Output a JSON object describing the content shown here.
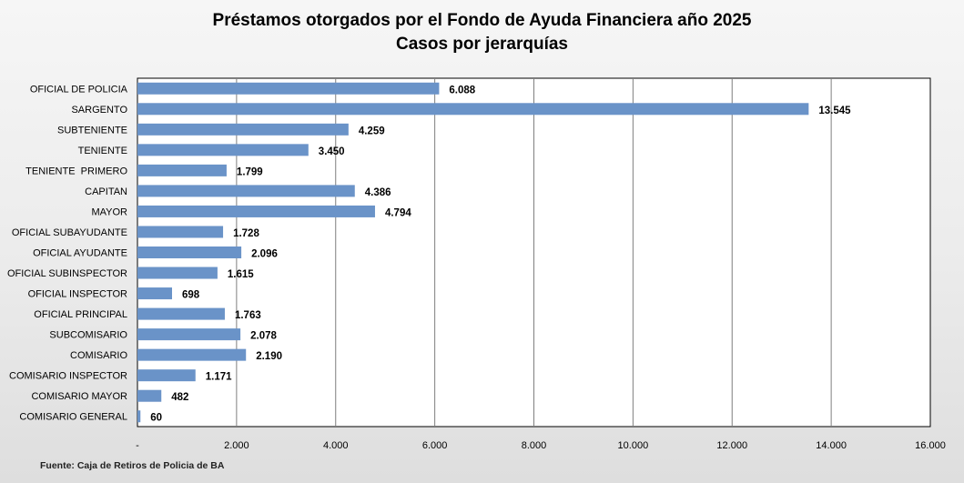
{
  "chart_data": {
    "type": "bar",
    "orientation": "horizontal",
    "title": "Préstamos otorgados por el Fondo de Ayuda Financiera año 2025",
    "subtitle": "Casos por jerarquías",
    "categories": [
      "OFICIAL DE POLICIA",
      "SARGENTO",
      "SUBTENIENTE",
      "TENIENTE",
      "TENIENTE  PRIMERO",
      "CAPITAN",
      "MAYOR",
      "OFICIAL SUBAYUDANTE",
      "OFICIAL AYUDANTE",
      "OFICIAL SUBINSPECTOR",
      "OFICIAL INSPECTOR",
      "OFICIAL PRINCIPAL",
      "SUBCOMISARIO",
      "COMISARIO",
      "COMISARIO INSPECTOR",
      "COMISARIO MAYOR",
      "COMISARIO GENERAL"
    ],
    "values": [
      6088,
      13545,
      4259,
      3450,
      1799,
      4386,
      4794,
      1728,
      2096,
      1615,
      698,
      1763,
      2078,
      2190,
      1171,
      482,
      60
    ],
    "value_labels": [
      "6.088",
      "13.545",
      "4.259",
      "3.450",
      "1.799",
      "4.386",
      "4.794",
      "1.728",
      "2.096",
      "1.615",
      "698",
      "1.763",
      "2.078",
      "2.190",
      "1.171",
      "482",
      "60"
    ],
    "xlim": [
      0,
      16000
    ],
    "x_ticks": [
      0,
      2000,
      4000,
      6000,
      8000,
      10000,
      12000,
      14000,
      16000
    ],
    "x_tick_labels": [
      "-",
      "2.000",
      "4.000",
      "6.000",
      "8.000",
      "10.000",
      "12.000",
      "14.000",
      "16.000"
    ],
    "xlabel": "",
    "ylabel": "",
    "grid": "vertical",
    "legend": "none",
    "bar_color": "#6a93c8"
  },
  "source": "Fuente: Caja de Retiros de Policia de BA"
}
